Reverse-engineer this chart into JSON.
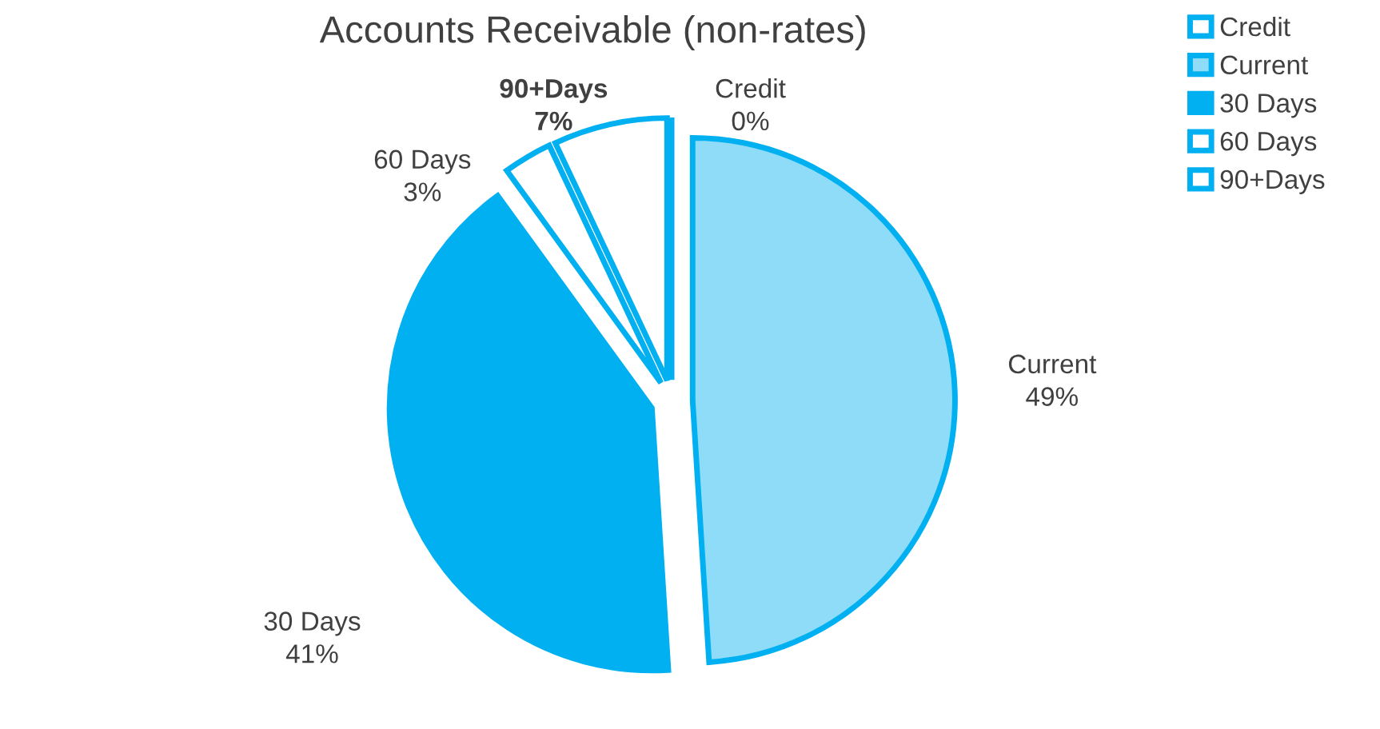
{
  "chart_data": {
    "type": "pie",
    "title": "Accounts Receivable (non-rates)",
    "categories": [
      "Credit",
      "Current",
      "30 Days",
      "60 Days",
      "90+Days"
    ],
    "values": [
      0,
      49,
      41,
      3,
      7
    ],
    "value_labels": [
      "0%",
      "49%",
      "41%",
      "3%",
      "7%"
    ],
    "colors": [
      "#ffffff",
      "#8fdcf8",
      "#00b0f0",
      "#ffffff",
      "#ffffff"
    ],
    "legend": "top right"
  }
}
